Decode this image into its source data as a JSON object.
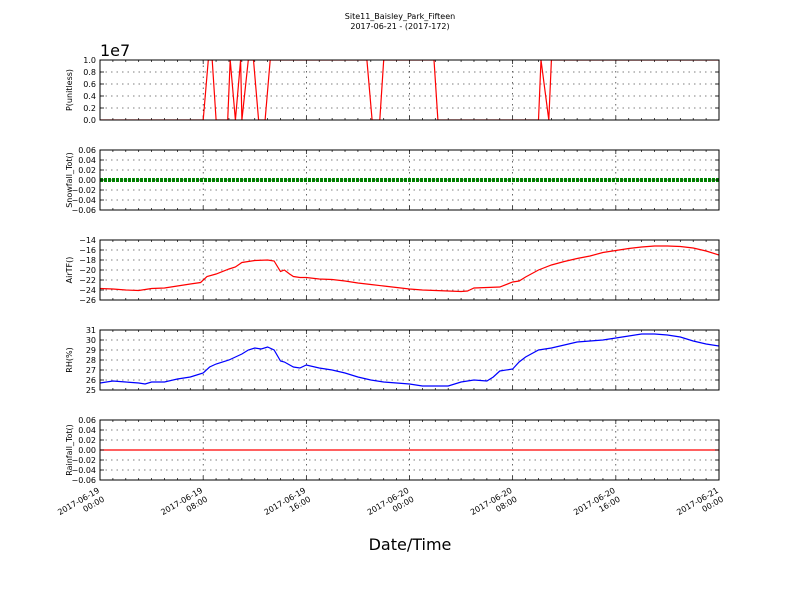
{
  "figure": {
    "title": "Site11_Baisley_Park_Fifteen",
    "subtitle": "2017-06-21 - (2017-172)",
    "xlabel": "Date/Time",
    "x_ticks": [
      {
        "t": 0,
        "line1": "2017-06-19",
        "line2": "00:00"
      },
      {
        "t": 8,
        "line1": "2017-06-19",
        "line2": "08:00"
      },
      {
        "t": 16,
        "line1": "2017-06-19",
        "line2": "16:00"
      },
      {
        "t": 24,
        "line1": "2017-06-20",
        "line2": "00:00"
      },
      {
        "t": 32,
        "line1": "2017-06-20",
        "line2": "08:00"
      },
      {
        "t": 40,
        "line1": "2017-06-20",
        "line2": "16:00"
      },
      {
        "t": 48,
        "line1": "2017-06-21",
        "line2": "00:00"
      }
    ],
    "x_range_hours": [
      0,
      48
    ]
  },
  "chart_data": [
    {
      "type": "line",
      "ylabel": "P(unitless)",
      "offset_label": "1e7",
      "ylim": [
        0,
        1.0
      ],
      "yticks": [
        "0.0",
        "0.2",
        "0.4",
        "0.6",
        "0.8",
        "1.0"
      ],
      "ytick_values": [
        0,
        0.2,
        0.4,
        0.6,
        0.8,
        1.0
      ],
      "grid": true,
      "series": [
        {
          "color": "#ff0000",
          "x": [
            0,
            8.0,
            8.4,
            8.7,
            9.0,
            9.9,
            10.1,
            10.5,
            10.9,
            11.0,
            11.5,
            11.9,
            12.3,
            12.8,
            13.2,
            13.5,
            13.9,
            20.7,
            21.1,
            21.7,
            22.0,
            25.9,
            26.2,
            34.0,
            34.2,
            34.8,
            35.0,
            48
          ],
          "y": [
            0,
            0,
            1.0,
            1.0,
            0,
            0,
            1.0,
            0,
            1.0,
            0,
            1.0,
            1.0,
            0,
            0,
            1.0,
            1.0,
            1.0,
            1.0,
            0,
            0,
            1.0,
            1.0,
            0,
            0,
            1.0,
            0,
            1.0,
            1.0
          ]
        }
      ]
    },
    {
      "type": "line",
      "ylabel": "Snowfall_Tot()",
      "ylim": [
        -0.06,
        0.06
      ],
      "yticks": [
        "−0.06",
        "−0.04",
        "−0.02",
        "0.00",
        "0.02",
        "0.04",
        "0.06"
      ],
      "ytick_values": [
        -0.06,
        -0.04,
        -0.02,
        0,
        0.02,
        0.04,
        0.06
      ],
      "grid": true,
      "series": [
        {
          "color": "#008000",
          "style": "thick",
          "x": [
            0,
            48
          ],
          "y": [
            0,
            0
          ]
        }
      ]
    },
    {
      "type": "line",
      "ylabel": "AirTF()",
      "ylim": [
        -26,
        -14
      ],
      "yticks": [
        "−26",
        "−24",
        "−22",
        "−20",
        "−18",
        "−16",
        "−14"
      ],
      "ytick_values": [
        -26,
        -24,
        -22,
        -20,
        -18,
        -16,
        -14
      ],
      "grid": true,
      "series": [
        {
          "color": "#ff0000",
          "x": [
            0,
            1,
            2,
            3,
            4,
            5,
            6,
            7,
            7.8,
            8.3,
            9,
            10,
            10.5,
            11,
            11.5,
            12,
            13,
            13.5,
            14,
            14.3,
            14.7,
            15,
            15.5,
            16,
            17,
            18,
            19,
            20,
            21,
            22,
            23,
            24,
            25,
            26,
            27,
            28,
            28.5,
            29,
            30,
            31,
            32,
            32.5,
            33,
            34,
            35,
            36,
            37,
            38,
            39,
            40,
            41,
            42,
            43,
            44,
            45,
            46,
            47,
            48
          ],
          "y": [
            -23.7,
            -23.8,
            -24.0,
            -24.1,
            -23.7,
            -23.6,
            -23.2,
            -22.8,
            -22.5,
            -21.3,
            -20.8,
            -19.8,
            -19.4,
            -18.5,
            -18.3,
            -18.1,
            -18.0,
            -18.2,
            -20.3,
            -20.0,
            -20.8,
            -21.3,
            -21.5,
            -21.5,
            -21.8,
            -21.9,
            -22.2,
            -22.6,
            -22.9,
            -23.2,
            -23.5,
            -23.8,
            -24.0,
            -24.1,
            -24.2,
            -24.3,
            -24.2,
            -23.6,
            -23.5,
            -23.4,
            -22.4,
            -22.2,
            -21.4,
            -20.0,
            -19.0,
            -18.3,
            -17.7,
            -17.2,
            -16.5,
            -16.1,
            -15.7,
            -15.4,
            -15.2,
            -15.2,
            -15.3,
            -15.6,
            -16.2,
            -17.0
          ]
        }
      ]
    },
    {
      "type": "line",
      "ylabel": "RH(%)",
      "ylim": [
        25,
        31
      ],
      "yticks": [
        "25",
        "26",
        "27",
        "28",
        "29",
        "30",
        "31"
      ],
      "ytick_values": [
        25,
        26,
        27,
        28,
        29,
        30,
        31
      ],
      "grid": true,
      "series": [
        {
          "color": "#0000ff",
          "x": [
            0,
            1,
            2,
            3,
            3.5,
            4,
            5,
            6,
            7,
            7.5,
            8,
            8.5,
            9,
            10,
            11,
            11.5,
            12,
            12.5,
            13,
            13.5,
            14,
            14.3,
            15,
            15.5,
            16,
            17,
            18,
            19,
            20,
            21,
            22,
            23,
            24,
            25,
            26,
            27,
            28,
            29,
            30,
            30.5,
            31,
            32,
            32.5,
            33,
            34,
            35,
            36,
            37,
            38,
            39,
            40,
            41,
            42,
            43,
            44,
            45,
            46,
            47,
            48
          ],
          "y": [
            25.7,
            25.9,
            25.8,
            25.7,
            25.6,
            25.8,
            25.8,
            26.1,
            26.3,
            26.5,
            26.7,
            27.3,
            27.6,
            28.0,
            28.6,
            29.0,
            29.2,
            29.1,
            29.3,
            29.0,
            27.9,
            27.8,
            27.3,
            27.2,
            27.5,
            27.2,
            27.0,
            26.7,
            26.3,
            26.0,
            25.8,
            25.7,
            25.6,
            25.4,
            25.4,
            25.4,
            25.8,
            26.0,
            25.9,
            26.3,
            26.9,
            27.1,
            27.8,
            28.3,
            29.0,
            29.2,
            29.5,
            29.8,
            29.9,
            30.0,
            30.2,
            30.4,
            30.6,
            30.6,
            30.5,
            30.3,
            29.9,
            29.6,
            29.4
          ]
        }
      ]
    },
    {
      "type": "line",
      "ylabel": "Rainfall_Tot()",
      "ylim": [
        -0.06,
        0.06
      ],
      "yticks": [
        "−0.06",
        "−0.04",
        "−0.02",
        "0.00",
        "0.02",
        "0.04",
        "0.06"
      ],
      "ytick_values": [
        -0.06,
        -0.04,
        -0.02,
        0,
        0.02,
        0.04,
        0.06
      ],
      "grid": true,
      "series": [
        {
          "color": "#ff0000",
          "x": [
            0,
            48
          ],
          "y": [
            0,
            0
          ]
        }
      ]
    }
  ]
}
